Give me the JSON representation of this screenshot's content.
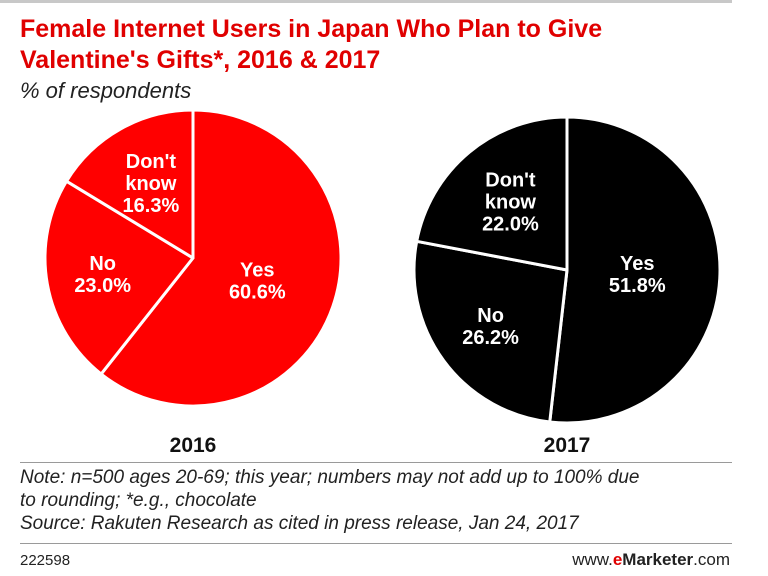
{
  "header": {
    "title_line1": "Female Internet Users in Japan Who Plan to Give",
    "title_line2": "Valentine's Gifts*, 2016 & 2017",
    "subtitle": "% of respondents"
  },
  "colors": {
    "accent": "#e00000",
    "pie_2016": "#ff0000",
    "pie_2017": "#000000",
    "label_text": "#ffffff"
  },
  "chart_data": [
    {
      "type": "pie",
      "title": "2016",
      "unit": "%",
      "slices": [
        {
          "label": "Yes",
          "value": 60.6,
          "value_label": "60.6%"
        },
        {
          "label": "No",
          "value": 23.0,
          "value_label": "23.0%"
        },
        {
          "label": "Don't know",
          "value": 16.3,
          "value_label": "16.3%"
        }
      ]
    },
    {
      "type": "pie",
      "title": "2017",
      "unit": "%",
      "slices": [
        {
          "label": "Yes",
          "value": 51.8,
          "value_label": "51.8%"
        },
        {
          "label": "No",
          "value": 26.2,
          "value_label": "26.2%"
        },
        {
          "label": "Don't know",
          "value": 22.0,
          "value_label": "22.0%"
        }
      ]
    }
  ],
  "footer": {
    "note_line1": "Note: n=500 ages 20-69; this year; numbers may not add up to 100% due",
    "note_line2": "to rounding; *e.g., chocolate",
    "source": "Source: Rakuten Research as cited in press release, Jan 24, 2017",
    "chart_id": "222598",
    "brand_prefix": "www.",
    "brand_e": "e",
    "brand_name": "Marketer",
    "brand_suffix": ".com"
  }
}
